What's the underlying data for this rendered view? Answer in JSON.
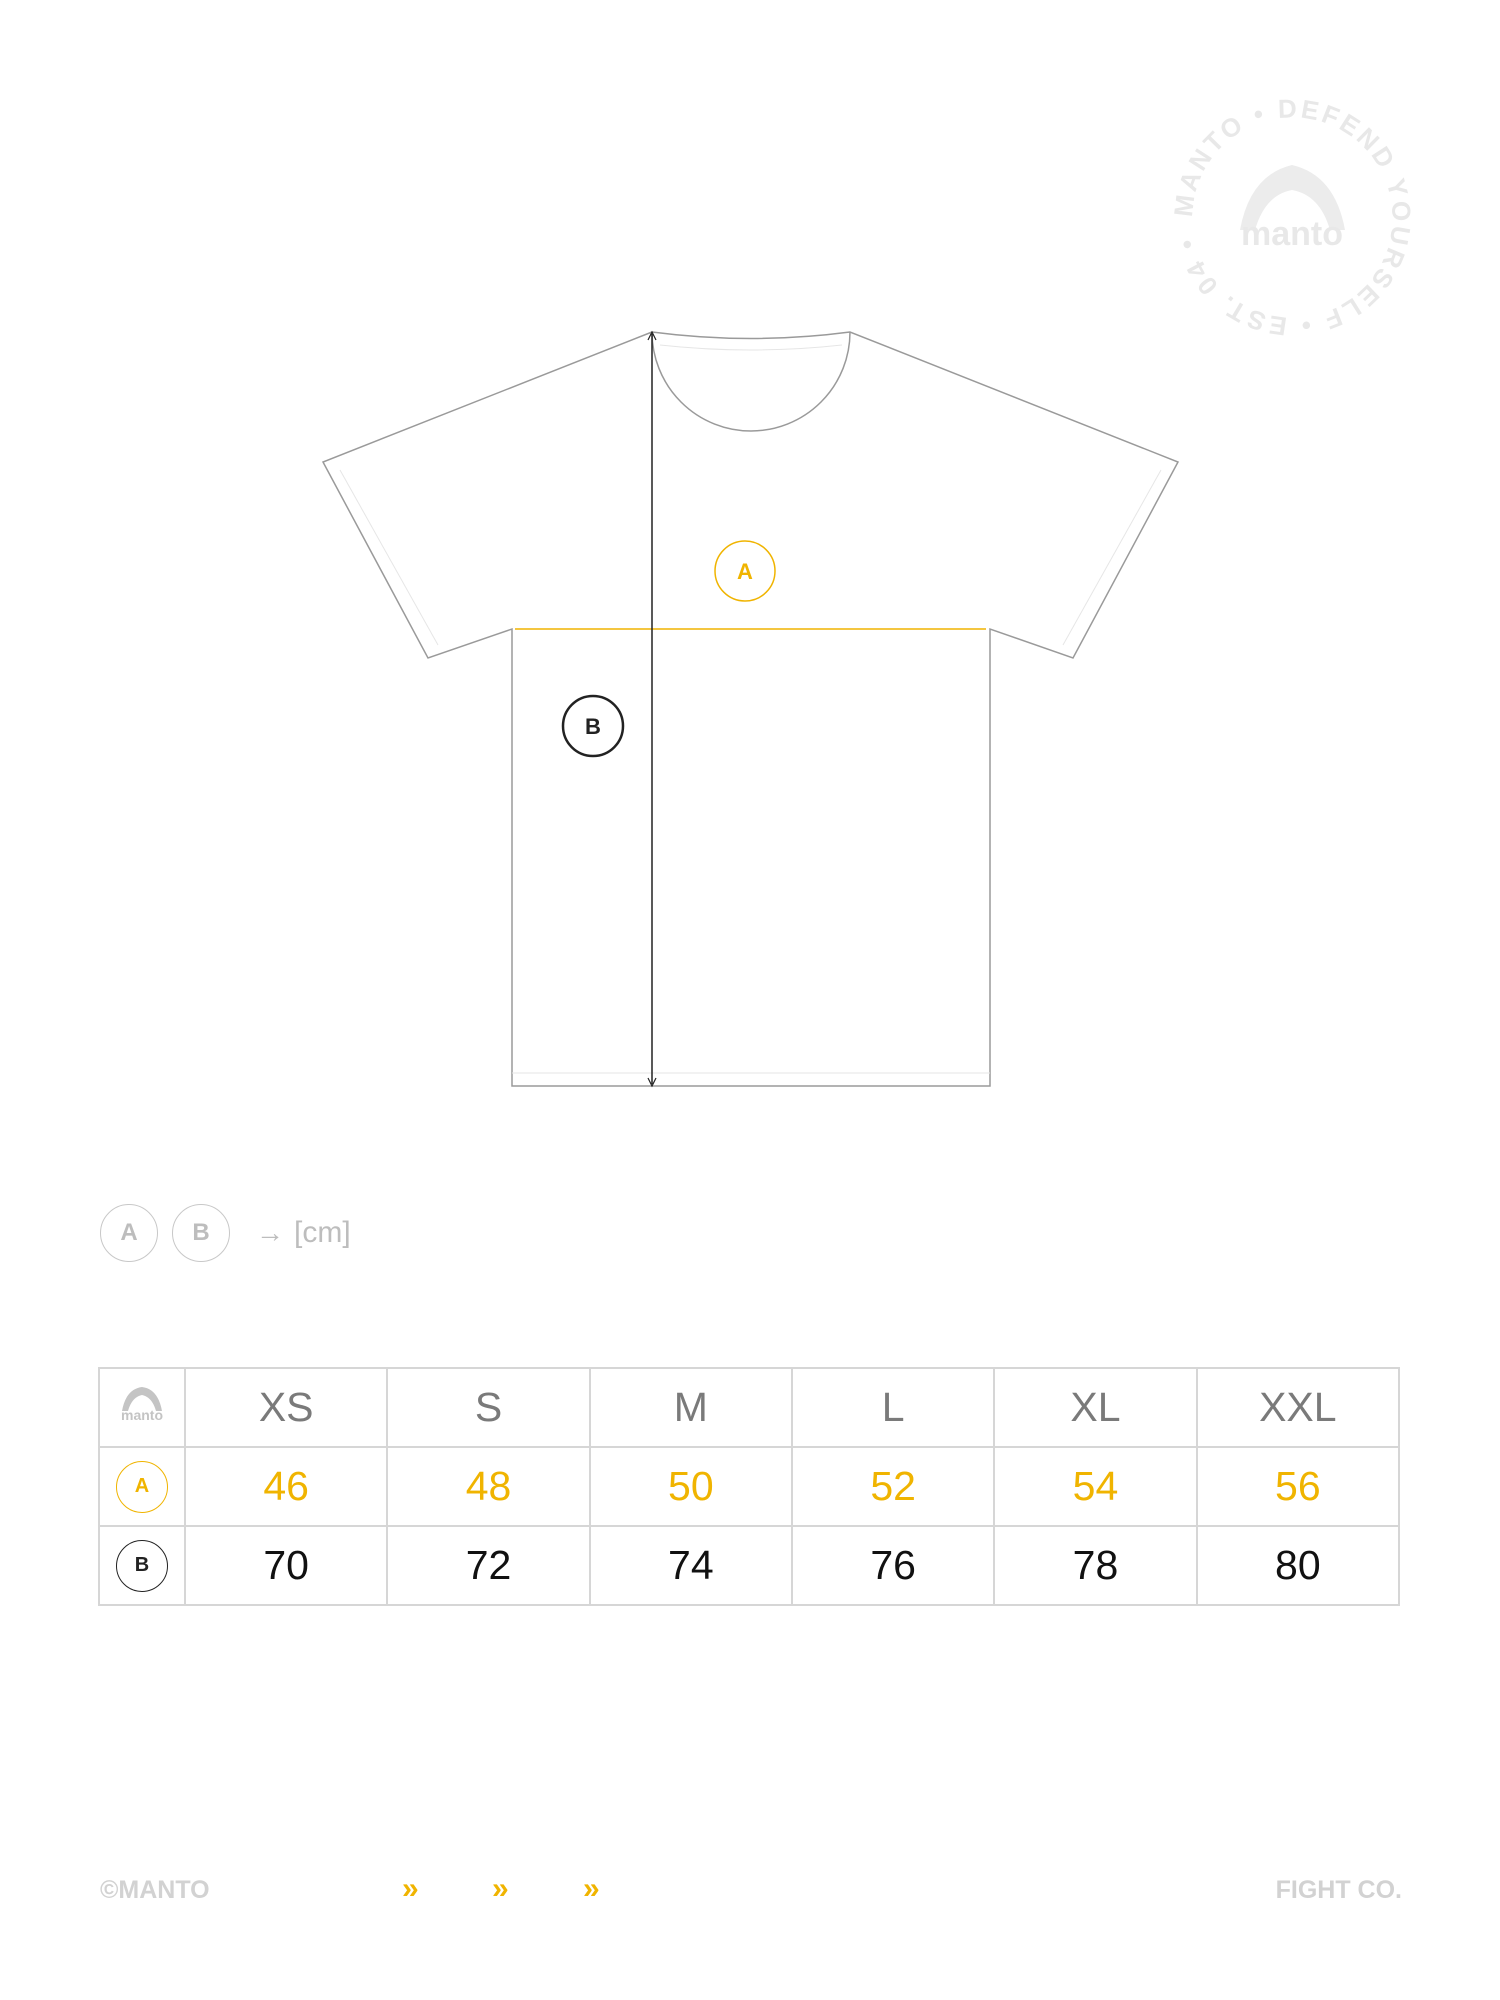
{
  "colors": {
    "accent": "#f0b400",
    "dark": "#111111",
    "muted": "#bdbdbd"
  },
  "stamp": {
    "text": "MANTO • DEFEND YOURSELF • EST. 04 •",
    "logo": "manto"
  },
  "diagram": {
    "label_a": "A",
    "label_b": "B"
  },
  "legend": {
    "a": "A",
    "b": "B",
    "arrow": "→",
    "unit": "[cm]"
  },
  "table": {
    "header_logo": "manto",
    "sizes": [
      "XS",
      "S",
      "M",
      "L",
      "XL",
      "XXL"
    ],
    "rows": [
      {
        "label": "A",
        "values": [
          "46",
          "48",
          "50",
          "52",
          "54",
          "56"
        ]
      },
      {
        "label": "B",
        "values": [
          "70",
          "72",
          "74",
          "76",
          "78",
          "80"
        ]
      }
    ]
  },
  "footer": {
    "left": "©MANTO",
    "chevron": "»",
    "right": "FIGHT CO."
  }
}
